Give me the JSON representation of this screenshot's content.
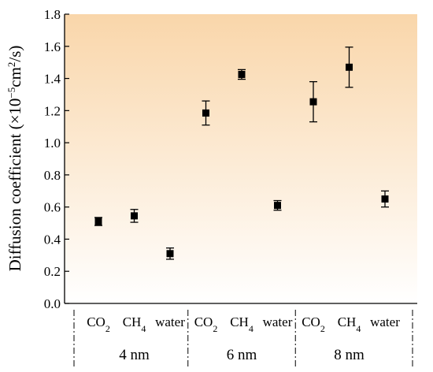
{
  "chart_data": {
    "type": "scatter",
    "ylabel": "Diffusion coefficient (×10⁻⁵cm²/s)",
    "ylabel_parts": {
      "main": "Diffusion coefficient (×10",
      "exp": "−5",
      "mid": "cm",
      "exp2": "2",
      "tail": "/s)"
    },
    "ylim": [
      0.0,
      1.8
    ],
    "yticks": [
      "0.0",
      "0.2",
      "0.4",
      "0.6",
      "0.8",
      "1.0",
      "1.2",
      "1.4",
      "1.6",
      "1.8"
    ],
    "groups": [
      {
        "label": "4 nm",
        "points": [
          {
            "name": "CO2",
            "base": "CO",
            "sub": "2",
            "y": 0.51,
            "err": 0.025
          },
          {
            "name": "CH4",
            "base": "CH",
            "sub": "4",
            "y": 0.545,
            "err": 0.04
          },
          {
            "name": "water",
            "base": "water",
            "sub": "",
            "y": 0.31,
            "err": 0.035
          }
        ]
      },
      {
        "label": "6 nm",
        "points": [
          {
            "name": "CO2",
            "base": "CO",
            "sub": "2",
            "y": 1.185,
            "err": 0.075
          },
          {
            "name": "CH4",
            "base": "CH",
            "sub": "4",
            "y": 1.425,
            "err": 0.03
          },
          {
            "name": "water",
            "base": "water",
            "sub": "",
            "y": 0.61,
            "err": 0.03
          }
        ]
      },
      {
        "label": "8 nm",
        "points": [
          {
            "name": "CO2",
            "base": "CO",
            "sub": "2",
            "y": 1.255,
            "err": 0.125
          },
          {
            "name": "CH4",
            "base": "CH",
            "sub": "4",
            "y": 1.47,
            "err": 0.125
          },
          {
            "name": "water",
            "base": "water",
            "sub": "",
            "y": 0.65,
            "err": 0.05
          }
        ]
      }
    ],
    "background_gradient": {
      "top": "#f9d6aa",
      "bottom": "#ffffff"
    },
    "marker_color": "#000000",
    "grid": false
  }
}
